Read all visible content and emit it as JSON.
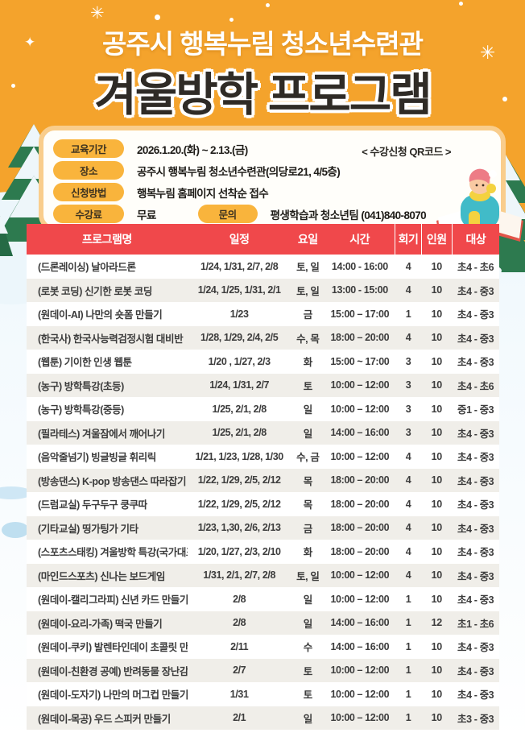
{
  "poster": {
    "title_line1": "공주시 행복누림 청소년수련관",
    "title_line2": "겨울방학 프로그램"
  },
  "icons": {
    "sparkle_big": "✳",
    "sparkle_small": "✦"
  },
  "info": {
    "qr_label": "< 수강신청 QR코드 >",
    "period_label": "교육기간",
    "period_value": "2026.1.20.(화) ~ 2.13.(금)",
    "place_label": "장소",
    "place_value": "공주시 행복누림 청소년수련관(의당로21, 4/5층)",
    "method_label": "신청방법",
    "method_value": "행복누림 홈페이지 선착순 접수",
    "fee_label": "수강료",
    "fee_value": "무료",
    "contact_label": "문의",
    "contact_value": "평생학습과 청소년팀 (041)840-8070"
  },
  "table": {
    "headers": [
      "프로그램명",
      "일정",
      "요일",
      "시간",
      "회기",
      "인원",
      "대상"
    ],
    "rows": [
      [
        "(드론레이싱) 날아라드론",
        "1/24, 1/31, 2/7, 2/8",
        "토, 일",
        "14:00 - 16:00",
        "4",
        "10",
        "초4 - 초6"
      ],
      [
        "(로봇 코딩) 신기한 로봇 코딩",
        "1/24, 1/25, 1/31, 2/1",
        "토, 일",
        "13:00 - 15:00",
        "4",
        "10",
        "초4 - 중3"
      ],
      [
        "(원데이-AI) 나만의 숏폼 만들기",
        "1/23",
        "금",
        "15:00 – 17:00",
        "1",
        "10",
        "초4 - 중3"
      ],
      [
        "(한국사) 한국사능력검정시험 대비반",
        "1/28, 1/29, 2/4, 2/5",
        "수, 목",
        "18:00 – 20:00",
        "4",
        "10",
        "초4 - 중3"
      ],
      [
        "(웹툰) 기이한 인생 웹툰",
        "1/20 , 1/27, 2/3",
        "화",
        "15:00 ~ 17:00",
        "3",
        "10",
        "초4 - 중3"
      ],
      [
        "(농구) 방학특강(초등)",
        "1/24, 1/31, 2/7",
        "토",
        "10:00 – 12:00",
        "3",
        "10",
        "초4 - 초6"
      ],
      [
        "(농구) 방학특강(중등)",
        "1/25, 2/1, 2/8",
        "일",
        "10:00 – 12:00",
        "3",
        "10",
        "중1 - 중3"
      ],
      [
        "(필라테스) 겨울잠에서 깨어나기",
        "1/25, 2/1, 2/8",
        "일",
        "14:00 – 16:00",
        "3",
        "10",
        "초4 - 중3"
      ],
      [
        "(음악줄넘기) 빙글빙글 휘리릭",
        "1/21, 1/23, 1/28, 1/30",
        "수, 금",
        "10:00 – 12:00",
        "4",
        "10",
        "초4 - 중3"
      ],
      [
        "(방송댄스) K-pop 방송댄스 따라잡기",
        "1/22, 1/29, 2/5, 2/12",
        "목",
        "18:00 – 20:00",
        "4",
        "10",
        "초4 - 중3"
      ],
      [
        "(드럼교실) 두구두구 쿵쿠따",
        "1/22, 1/29, 2/5, 2/12",
        "목",
        "18:00 – 20:00",
        "4",
        "10",
        "초4 - 중3"
      ],
      [
        "(기타교실) 띵가팅가 기타",
        "1/23, 1,30, 2/6, 2/13",
        "금",
        "18:00 – 20:00",
        "4",
        "10",
        "초4 - 중3"
      ],
      [
        "(스포츠스태킹) 겨울방학 특강(국가대표 직접지도)",
        "1/20, 1/27, 2/3, 2/10",
        "화",
        "18:00 – 20:00",
        "4",
        "10",
        "초4 - 중3"
      ],
      [
        "(마인드스포츠) 신나는 보드게임",
        "1/31, 2/1, 2/7, 2/8",
        "토, 일",
        "10:00 – 12:00",
        "4",
        "10",
        "초4 - 중3"
      ],
      [
        "(원데이-캘리그라피) 신년 카드 만들기",
        "2/8",
        "일",
        "10:00 – 12:00",
        "1",
        "10",
        "초4 - 중3"
      ],
      [
        "(원데이-요리-가족) 떡국 만들기",
        "2/8",
        "일",
        "14:00 – 16:00",
        "1",
        "12",
        "초1 - 초6"
      ],
      [
        "(원데이-쿠키) 발렌타인데이 초콜릿 만들기",
        "2/11",
        "수",
        "14:00 – 16:00",
        "1",
        "10",
        "초4 - 중3"
      ],
      [
        "(원데이-친환경 공예) 반려동물 장난감 만들기",
        "2/7",
        "토",
        "10:00 – 12:00",
        "1",
        "10",
        "초4 - 중3"
      ],
      [
        "(원데이-도자기) 나만의 머그컵 만들기",
        "1/31",
        "토",
        "10:00 – 12:00",
        "1",
        "10",
        "초4 - 중3"
      ],
      [
        "(원데이-목공) 우드 스피커 만들기",
        "2/1",
        "일",
        "10:00 – 12:00",
        "1",
        "10",
        "초3 - 중3"
      ]
    ]
  },
  "colors": {
    "header_orange": "#f4a32c",
    "table_header_red": "#f0484b",
    "pill_yellow": "#f9b43c",
    "row_alt": "#f0eee9",
    "title_dark": "#2f2b26"
  }
}
